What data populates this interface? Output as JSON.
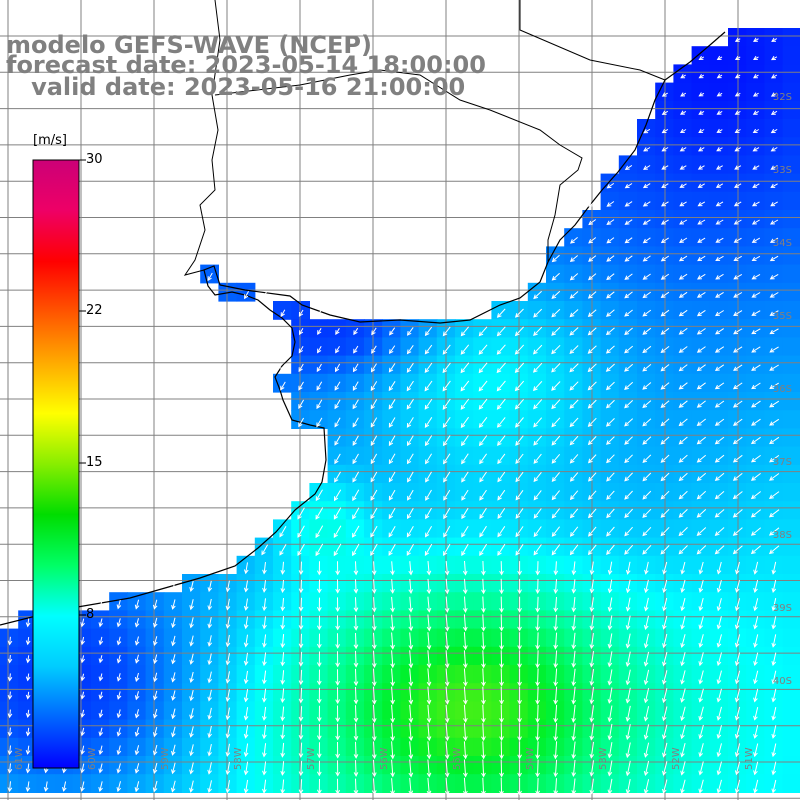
{
  "title": {
    "line1": "modelo GEFS-WAVE (NCEP)",
    "line2": "forecast date: 2023-05-14 18:00:00",
    "line3": "   valid date: 2023-05-16 21:00:00"
  },
  "colorbar": {
    "unit": "[m/s]",
    "ticks": [
      "30",
      "22",
      "15",
      "8"
    ],
    "min": 0,
    "max": 30,
    "colors": [
      "#0000ff",
      "#0066ff",
      "#00ccff",
      "#00ffff",
      "#00ff66",
      "#00dd00",
      "#88ee00",
      "#ffff00",
      "#ffaa00",
      "#ff5500",
      "#ff0000",
      "#ee0066",
      "#cc0077"
    ]
  },
  "map": {
    "variable": "wind speed and direction",
    "land_color": "#ffffff",
    "grid_color": "#808080",
    "coast_color": "#000000",
    "arrow_color": "#ffffff",
    "lat_labels": [
      "32S",
      "33S",
      "34S",
      "35S",
      "36S",
      "37S",
      "38S",
      "39S",
      "40S"
    ],
    "lon_labels": [
      "61W",
      "60W",
      "59W",
      "58W",
      "57W",
      "56W",
      "55W",
      "54W",
      "53W",
      "52W",
      "51W"
    ]
  }
}
